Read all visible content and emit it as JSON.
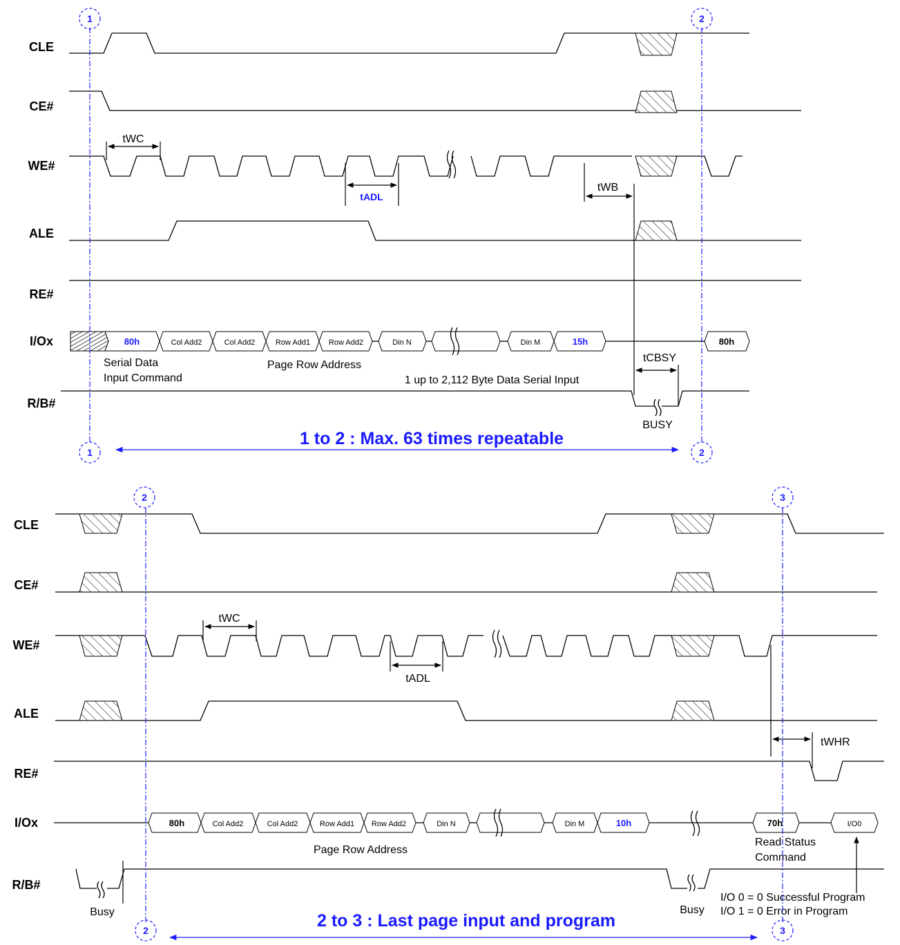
{
  "signals": {
    "cle": "CLE",
    "ce": "CE#",
    "we": "WE#",
    "ale": "ALE",
    "re": "RE#",
    "io": "I/Ox",
    "rb": "R/B#"
  },
  "markers": {
    "m1": "1",
    "m2": "2",
    "m3": "3"
  },
  "top": {
    "bus": {
      "cmd_80h": "80h",
      "col_add1": "Col Add2",
      "col_add2": "Col Add2",
      "row_add1": "Row Add1",
      "row_add2": "Row Add2",
      "din_n": "Din N",
      "din_m": "Din M",
      "cmd_15h": "15h",
      "cmd_80h_next": "80h"
    },
    "timing": {
      "twc": "tWC",
      "tadl": "tADL",
      "twb": "tWB",
      "tcbsy": "tCBSY"
    },
    "notes": {
      "serial_data": "Serial Data",
      "input_command": "Input Command",
      "page_row_address": "Page Row Address",
      "byte_input": "1 up to 2,112 Byte Data Serial Input",
      "busy": "BUSY"
    },
    "range_caption": "1 to 2 : Max. 63 times repeatable"
  },
  "bottom": {
    "bus": {
      "cmd_80h": "80h",
      "col_add1": "Col Add2",
      "col_add2": "Col Add2",
      "row_add1": "Row Add1",
      "row_add2": "Row Add2",
      "din_n": "Din N",
      "din_m": "Din M",
      "cmd_10h": "10h",
      "cmd_70h": "70h",
      "io0": "I/O0"
    },
    "timing": {
      "twc": "tWC",
      "tadl": "tADL",
      "twhr": "tWHR"
    },
    "notes": {
      "page_row_address": "Page Row Address",
      "read_status": "Read Status",
      "command": "Command",
      "busy_left": "Busy",
      "busy_right": "Busy",
      "io0_success": "I/O 0 = 0 Successful Program",
      "io1_error": "I/O 1 = 0 Error in Program"
    },
    "range_caption": "2 to 3 : Last page input and program"
  },
  "colors": {
    "marker_blue": "#1a1aff",
    "line": "#000000"
  }
}
